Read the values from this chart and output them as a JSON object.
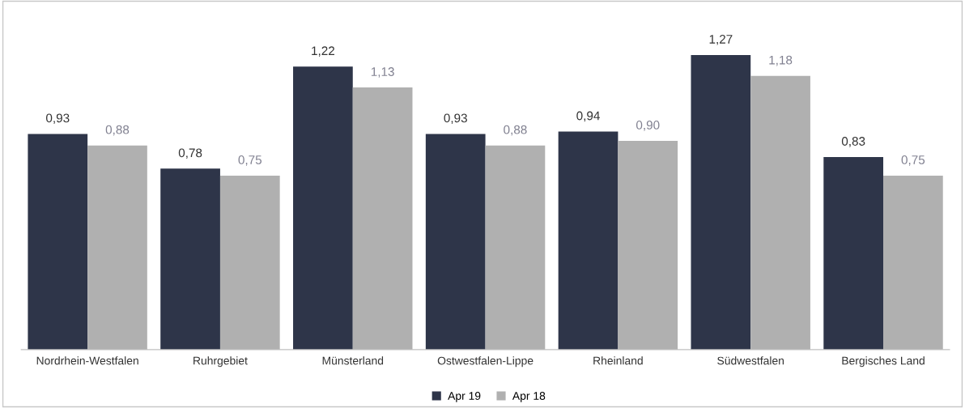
{
  "chart_data": {
    "type": "bar",
    "categories": [
      "Nordrhein-Westfalen",
      "Ruhrgebiet",
      "Münsterland",
      "Ostwestfalen-Lippe",
      "Rheinland",
      "Südwestfalen",
      "Bergisches Land"
    ],
    "series": [
      {
        "name": "Apr 19",
        "color": "#2e3549",
        "values": [
          0.93,
          0.78,
          1.22,
          0.93,
          0.94,
          1.27,
          0.83
        ],
        "value_labels": [
          "0,93",
          "0,78",
          "1,22",
          "0,93",
          "0,94",
          "1,27",
          "0,83"
        ]
      },
      {
        "name": "Apr 18",
        "color": "#b0b0b0",
        "values": [
          0.88,
          0.75,
          1.13,
          0.88,
          0.9,
          1.18,
          0.75
        ],
        "value_labels": [
          "0,88",
          "0,75",
          "1,13",
          "0,88",
          "0,90",
          "1,18",
          "0,75"
        ]
      }
    ],
    "legend": "bottom",
    "grid": false
  }
}
